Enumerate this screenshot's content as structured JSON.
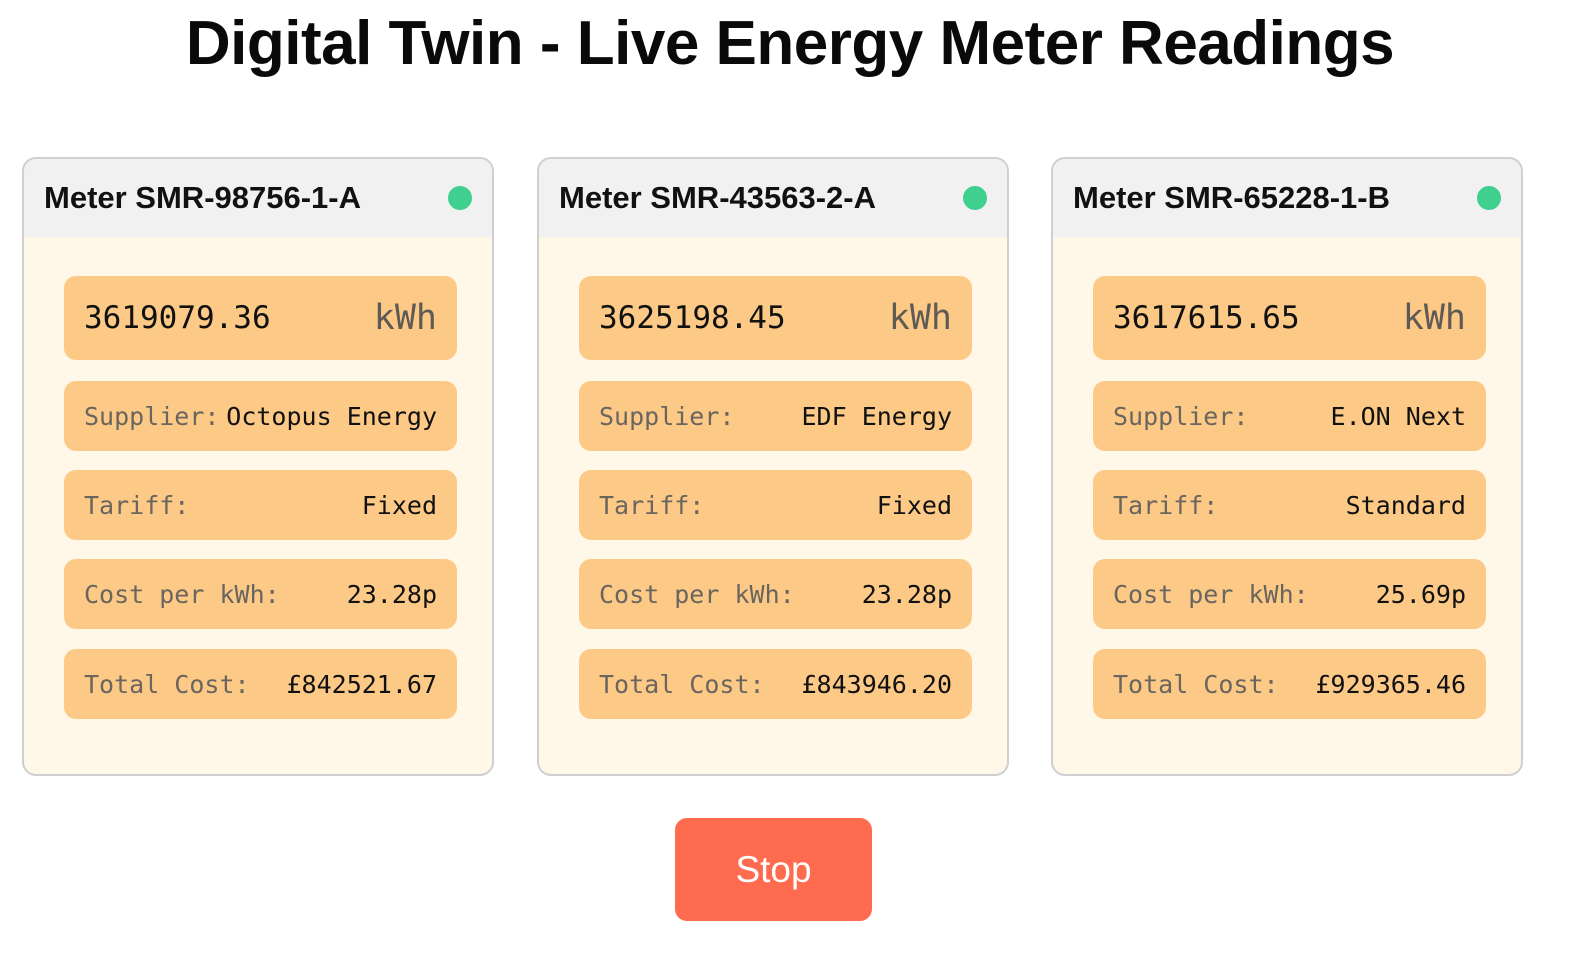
{
  "page": {
    "title": "Digital Twin - Live Energy Meter Readings"
  },
  "colors": {
    "status_online": "#3fcf8e",
    "row_background": "#fdc986",
    "card_background": "#fff7e8",
    "stop_button": "#ff6b4f"
  },
  "icons": {
    "status": "status-dot-icon"
  },
  "meters": [
    {
      "id": "Meter SMR-98756-1-A",
      "status": "online",
      "reading": "3619079.36",
      "unit": "kWh",
      "supplier_label": "Supplier:",
      "supplier": "Octopus Energy",
      "tariff_label": "Tariff:",
      "tariff": "Fixed",
      "cost_label": "Cost per kWh:",
      "cost": "23.28p",
      "total_label": "Total Cost:",
      "total": "£842521.67"
    },
    {
      "id": "Meter SMR-43563-2-A",
      "status": "online",
      "reading": "3625198.45",
      "unit": "kWh",
      "supplier_label": "Supplier:",
      "supplier": "EDF Energy",
      "tariff_label": "Tariff:",
      "tariff": "Fixed",
      "cost_label": "Cost per kWh:",
      "cost": "23.28p",
      "total_label": "Total Cost:",
      "total": "£843946.20"
    },
    {
      "id": "Meter SMR-65228-1-B",
      "status": "online",
      "reading": "3617615.65",
      "unit": "kWh",
      "supplier_label": "Supplier:",
      "supplier": "E.ON Next",
      "tariff_label": "Tariff:",
      "tariff": "Standard",
      "cost_label": "Cost per kWh:",
      "cost": "25.69p",
      "total_label": "Total Cost:",
      "total": "£929365.46"
    }
  ],
  "controls": {
    "stop_label": "Stop"
  }
}
